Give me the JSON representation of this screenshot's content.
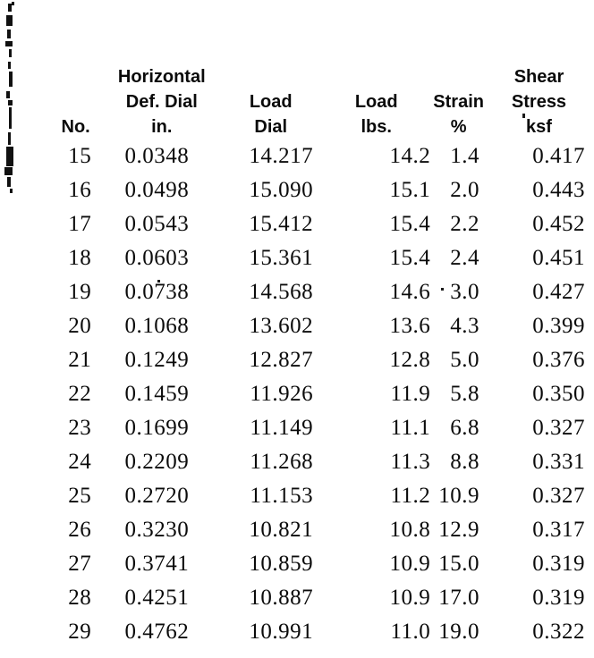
{
  "table": {
    "columns": [
      {
        "name": "no",
        "lines": [
          "",
          "",
          "No."
        ]
      },
      {
        "name": "horiz-def-dial",
        "lines": [
          "Horizontal",
          "Def. Dial",
          "in."
        ]
      },
      {
        "name": "load-dial",
        "lines": [
          "",
          "Load",
          "Dial"
        ]
      },
      {
        "name": "load-lbs",
        "lines": [
          "",
          "Load",
          "lbs."
        ]
      },
      {
        "name": "strain-pct",
        "lines": [
          "",
          "Strain",
          "%"
        ]
      },
      {
        "name": "shear-stress",
        "lines": [
          "Shear",
          "Stress",
          "ksf"
        ]
      }
    ],
    "rows": [
      [
        "15",
        "0.0348",
        "14.217",
        "14.2",
        "1.4",
        "0.417"
      ],
      [
        "16",
        "0.0498",
        "15.090",
        "15.1",
        "2.0",
        "0.443"
      ],
      [
        "17",
        "0.0543",
        "15.412",
        "15.4",
        "2.2",
        "0.452"
      ],
      [
        "18",
        "0.0603",
        "15.361",
        "15.4",
        "2.4",
        "0.451"
      ],
      [
        "19",
        "0.0738",
        "14.568",
        "14.6",
        "3.0",
        "0.427"
      ],
      [
        "20",
        "0.1068",
        "13.602",
        "13.6",
        "4.3",
        "0.399"
      ],
      [
        "21",
        "0.1249",
        "12.827",
        "12.8",
        "5.0",
        "0.376"
      ],
      [
        "22",
        "0.1459",
        "11.926",
        "11.9",
        "5.8",
        "0.350"
      ],
      [
        "23",
        "0.1699",
        "11.149",
        "11.1",
        "6.8",
        "0.327"
      ],
      [
        "24",
        "0.2209",
        "11.268",
        "11.3",
        "8.8",
        "0.331"
      ],
      [
        "25",
        "0.2720",
        "11.153",
        "11.2",
        "10.9",
        "0.327"
      ],
      [
        "26",
        "0.3230",
        "10.821",
        "10.8",
        "12.9",
        "0.317"
      ],
      [
        "27",
        "0.3741",
        "10.859",
        "10.9",
        "15.0",
        "0.319"
      ],
      [
        "28",
        "0.4251",
        "10.887",
        "10.9",
        "17.0",
        "0.319"
      ],
      [
        "29",
        "0.4762",
        "10.991",
        "11.0",
        "19.0",
        "0.322"
      ]
    ],
    "text_color": "#0b0b0b",
    "background_color": "#ffffff"
  }
}
